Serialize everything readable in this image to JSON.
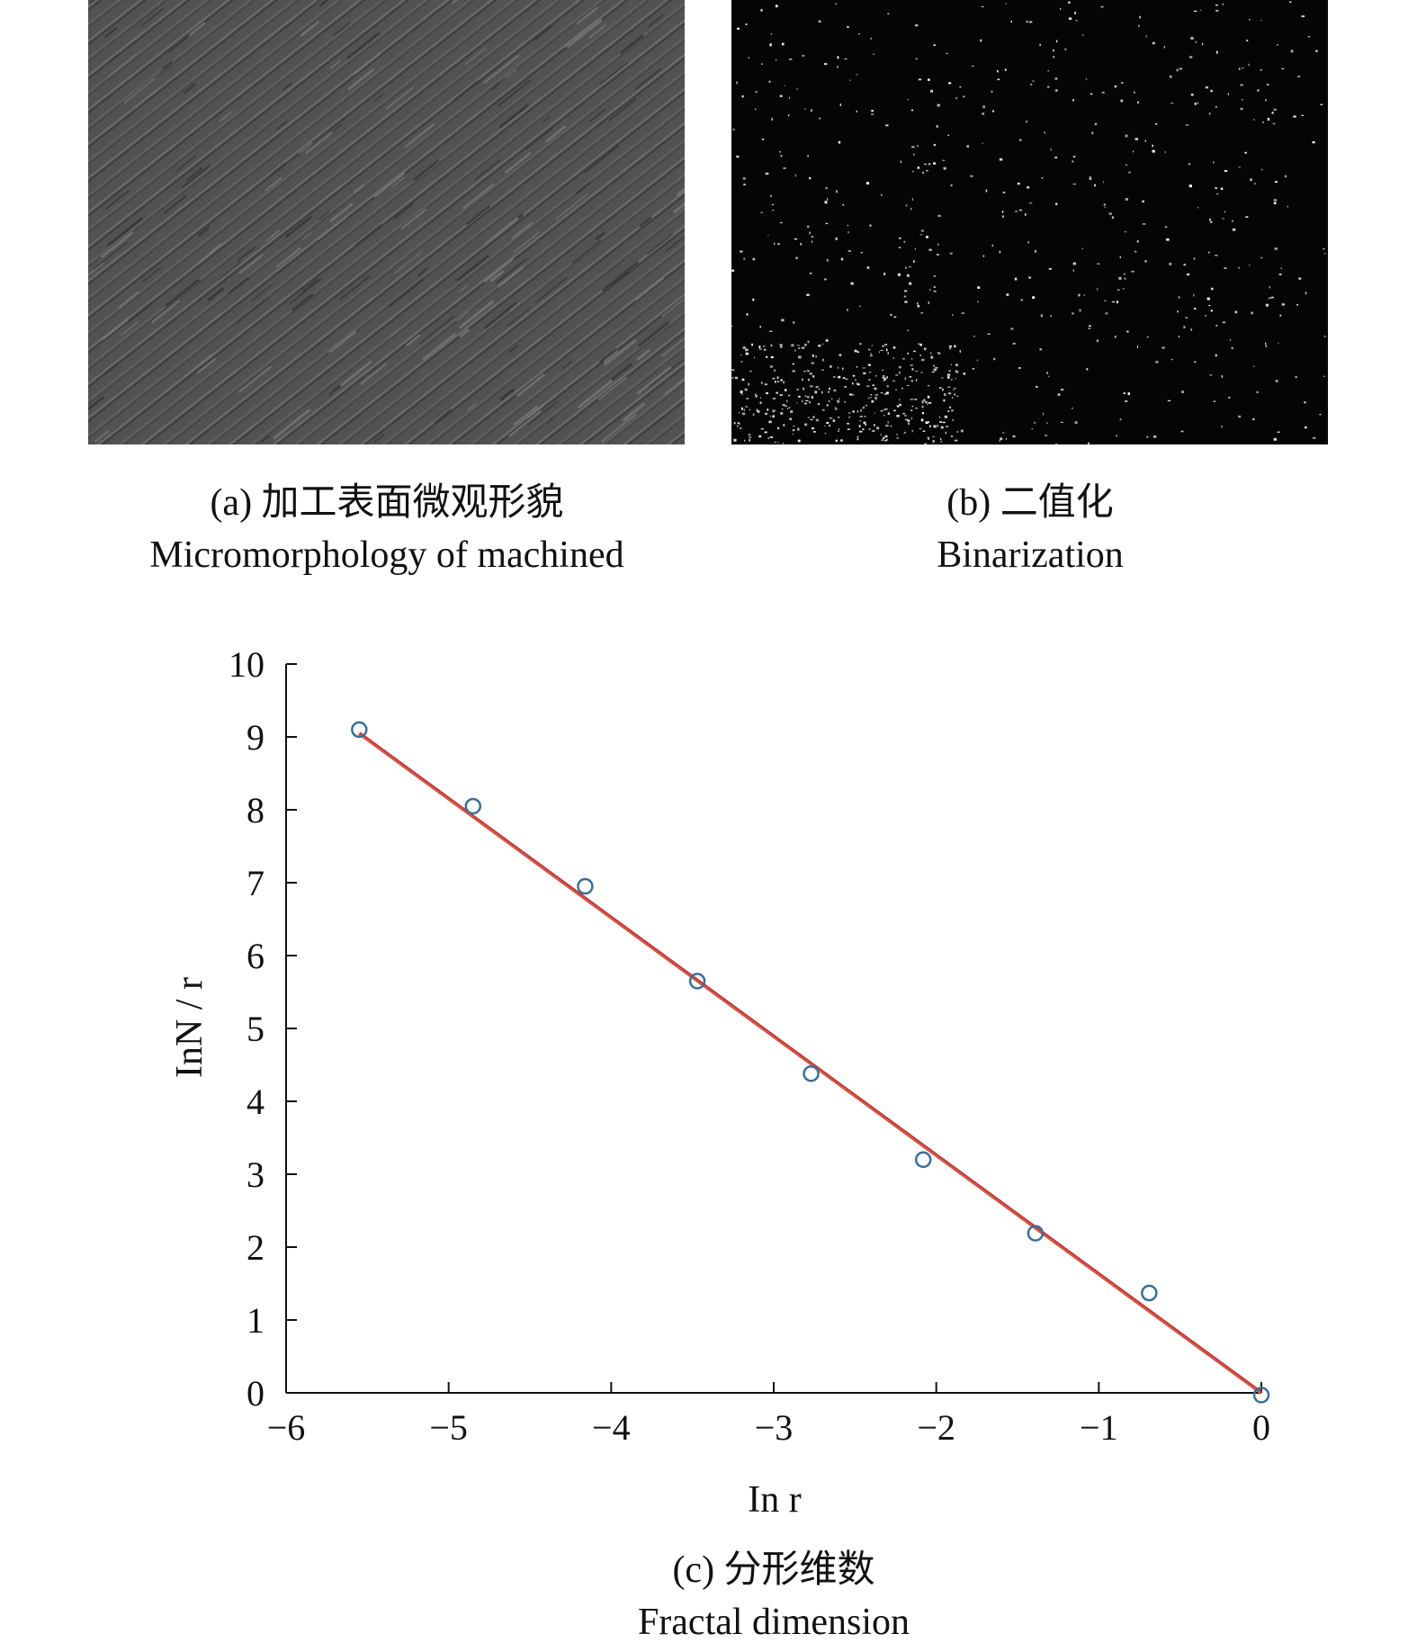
{
  "panels": {
    "a": {
      "caption_cn": "(a) 加工表面微观形貌",
      "caption_en": "Micromorphology of machined"
    },
    "b": {
      "caption_cn": "(b) 二值化",
      "caption_en": "Binarization"
    },
    "c": {
      "caption_cn": "(c) 分形维数",
      "caption_en": "Fractal dimension"
    }
  },
  "colors": {
    "surface_gray": "#525252",
    "binary_bg": "#050505",
    "marker": "#3a6e97",
    "fit_line": "#c4373d",
    "fit_line_overlay": "#d4664a"
  },
  "chart_data": {
    "type": "scatter",
    "xlabel": "In r",
    "ylabel": "InN / r",
    "xlim": [
      -6,
      0
    ],
    "ylim": [
      0,
      10
    ],
    "xticks": [
      "−6",
      "−5",
      "−4",
      "−3",
      "−2",
      "−1",
      "0"
    ],
    "yticks": [
      "0",
      "1",
      "2",
      "3",
      "4",
      "5",
      "6",
      "7",
      "8",
      "9",
      "10"
    ],
    "grid": false,
    "series": [
      {
        "marker": "circle",
        "x": [
          -5.55,
          -4.85,
          -4.16,
          -3.47,
          -2.77,
          -2.08,
          -1.39,
          -0.69,
          0.0
        ],
        "y": [
          9.1,
          8.05,
          6.95,
          5.65,
          4.38,
          3.2,
          2.19,
          1.37,
          -0.03
        ]
      }
    ],
    "fit_line": {
      "x": [
        -5.55,
        0.0
      ],
      "y": [
        9.05,
        0.0
      ]
    }
  }
}
